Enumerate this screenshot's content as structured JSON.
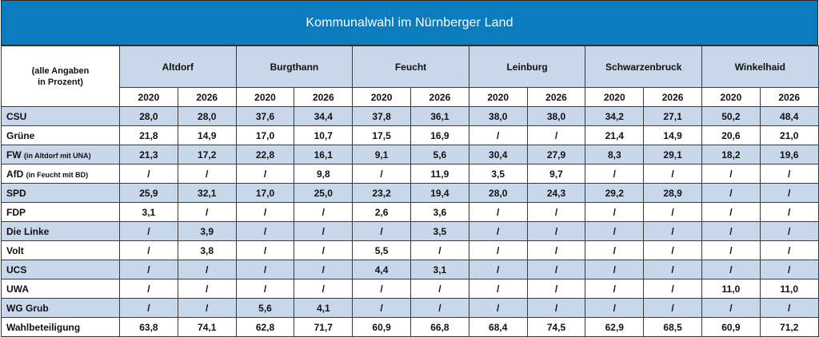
{
  "title": "Kommunalwahl im Nürnberger Land",
  "corner_label_line1": "(alle Angaben",
  "corner_label_line2": "in Prozent)",
  "municipalities": [
    "Altdorf",
    "Burgthann",
    "Feucht",
    "Leinburg",
    "Schwarzenbruck",
    "Winkelhaid"
  ],
  "years": [
    "2020",
    "2026"
  ],
  "rows": [
    {
      "party": "CSU",
      "note": "",
      "values": [
        "28,0",
        "28,0",
        "37,6",
        "34,4",
        "37,8",
        "36,1",
        "38,0",
        "38,0",
        "34,2",
        "27,1",
        "50,2",
        "48,4"
      ]
    },
    {
      "party": "Grüne",
      "note": "",
      "values": [
        "21,8",
        "14,9",
        "17,0",
        "10,7",
        "17,5",
        "16,9",
        "/",
        "/",
        "21,4",
        "14,9",
        "20,6",
        "21,0"
      ]
    },
    {
      "party": "FW",
      "note": "(in Altdorf mit UNA)",
      "values": [
        "21,3",
        "17,2",
        "22,8",
        "16,1",
        "9,1",
        "5,6",
        "30,4",
        "27,9",
        "8,3",
        "29,1",
        "18,2",
        "19,6"
      ]
    },
    {
      "party": "AfD",
      "note": "(in Feucht mit BD)",
      "values": [
        "/",
        "/",
        "/",
        "9,8",
        "/",
        "11,9",
        "3,5",
        "9,7",
        "/",
        "/",
        "/",
        "/"
      ]
    },
    {
      "party": "SPD",
      "note": "",
      "values": [
        "25,9",
        "32,1",
        "17,0",
        "25,0",
        "23,2",
        "19,4",
        "28,0",
        "24,3",
        "29,2",
        "28,9",
        "/",
        "/"
      ]
    },
    {
      "party": "FDP",
      "note": "",
      "values": [
        "3,1",
        "/",
        "/",
        "/",
        "2,6",
        "3,6",
        "/",
        "/",
        "/",
        "/",
        "/",
        "/"
      ]
    },
    {
      "party": "Die Linke",
      "note": "",
      "values": [
        "/",
        "3,9",
        "/",
        "/",
        "/",
        "3,5",
        "/",
        "/",
        "/",
        "/",
        "/",
        "/"
      ]
    },
    {
      "party": "Volt",
      "note": "",
      "values": [
        "/",
        "3,8",
        "/",
        "/",
        "5,5",
        "/",
        "/",
        "/",
        "/",
        "/",
        "/",
        "/"
      ]
    },
    {
      "party": "UCS",
      "note": "",
      "values": [
        "/",
        "/",
        "/",
        "/",
        "4,4",
        "3,1",
        "/",
        "/",
        "/",
        "/",
        "/",
        "/"
      ]
    },
    {
      "party": "UWA",
      "note": "",
      "values": [
        "/",
        "/",
        "/",
        "/",
        "/",
        "/",
        "/",
        "/",
        "/",
        "/",
        "11,0",
        "11,0"
      ]
    },
    {
      "party": "WG Grub",
      "note": "",
      "values": [
        "/",
        "/",
        "5,6",
        "4,1",
        "/",
        "/",
        "/",
        "/",
        "/",
        "/",
        "/",
        "/"
      ]
    },
    {
      "party": "Wahlbeteiligung",
      "note": "",
      "values": [
        "63,8",
        "74,1",
        "62,8",
        "71,7",
        "60,9",
        "66,8",
        "68,4",
        "74,5",
        "62,9",
        "68,5",
        "60,9",
        "71,2"
      ]
    }
  ]
}
